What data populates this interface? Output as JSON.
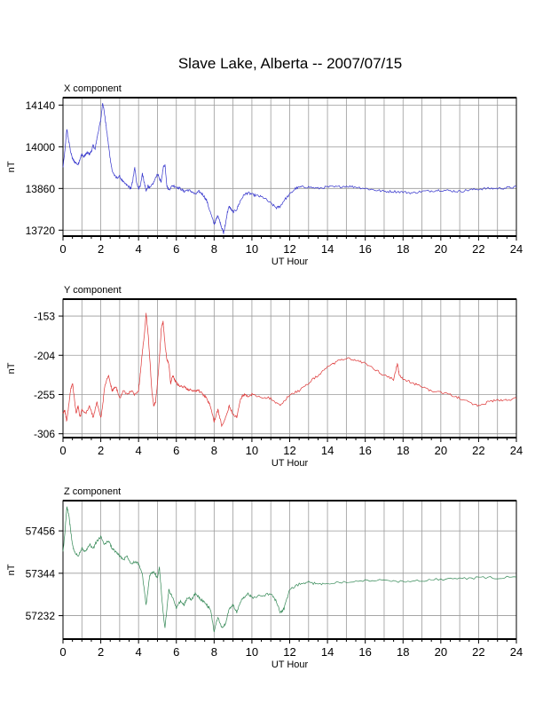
{
  "title": "Slave Lake, Alberta -- 2007/07/15",
  "chart_data": [
    {
      "type": "line",
      "title": "X component",
      "xlabel": "UT Hour",
      "ylabel": "nT",
      "xlim": [
        0,
        24
      ],
      "ylim": [
        13700,
        14165
      ],
      "xticks": [
        0,
        2,
        4,
        6,
        8,
        10,
        12,
        14,
        16,
        18,
        20,
        22,
        24
      ],
      "xtick_labels": [
        "0",
        "2",
        "4",
        "6",
        "8",
        "10",
        "12",
        "14",
        "16",
        "18",
        "20",
        "22",
        "24"
      ],
      "yticks": [
        13720,
        13860,
        14000,
        14140
      ],
      "ytick_labels": [
        "13720",
        "13860",
        "14000",
        "14140"
      ],
      "grid": true,
      "color": "#3333cc",
      "series": [
        {
          "x": [
            0.0,
            0.1,
            0.2,
            0.3,
            0.4,
            0.5,
            0.6,
            0.8,
            0.9,
            1.0,
            1.1,
            1.2,
            1.3,
            1.4,
            1.5,
            1.6,
            1.7,
            1.8,
            1.9,
            2.0,
            2.1,
            2.2,
            2.3,
            2.4,
            2.5,
            2.6,
            2.8,
            3.0,
            3.2,
            3.4,
            3.6,
            3.7,
            3.8,
            3.9,
            4.0,
            4.1,
            4.2,
            4.3,
            4.4,
            4.5,
            4.6,
            4.8,
            5.0,
            5.2,
            5.3,
            5.4,
            5.5,
            5.6,
            5.8,
            6.0,
            6.2,
            6.4,
            6.6,
            6.8,
            7.0,
            7.2,
            7.4,
            7.6,
            7.8,
            8.0,
            8.1,
            8.2,
            8.3,
            8.4,
            8.5,
            8.6,
            8.7,
            8.8,
            8.9,
            9.0,
            9.2,
            9.4,
            9.6,
            9.8,
            10.0,
            10.3,
            10.6,
            11.0,
            11.3,
            11.5,
            11.7,
            12.0,
            12.3,
            12.6,
            13.0,
            13.5,
            14.0,
            14.5,
            15.0,
            15.5,
            16.0,
            16.5,
            17.0,
            17.5,
            18.0,
            18.5,
            19.0,
            19.5,
            20.0,
            20.5,
            21.0,
            21.5,
            22.0,
            22.5,
            23.0,
            23.5,
            24.0
          ],
          "values": [
            13930,
            13985,
            14060,
            14020,
            13985,
            13960,
            13950,
            13940,
            13960,
            13975,
            13965,
            13975,
            13980,
            13975,
            13985,
            14005,
            13990,
            14030,
            14060,
            14090,
            14150,
            14110,
            14060,
            14010,
            13960,
            13920,
            13895,
            13900,
            13880,
            13870,
            13860,
            13890,
            13930,
            13880,
            13860,
            13870,
            13910,
            13880,
            13850,
            13870,
            13860,
            13880,
            13910,
            13880,
            13930,
            13940,
            13870,
            13855,
            13870,
            13865,
            13860,
            13850,
            13855,
            13850,
            13840,
            13850,
            13840,
            13820,
            13780,
            13740,
            13755,
            13770,
            13750,
            13730,
            13710,
            13740,
            13780,
            13800,
            13790,
            13780,
            13790,
            13820,
            13840,
            13845,
            13840,
            13835,
            13830,
            13810,
            13795,
            13800,
            13820,
            13840,
            13860,
            13865,
            13865,
            13860,
            13865,
            13865,
            13868,
            13865,
            13860,
            13855,
            13850,
            13850,
            13848,
            13845,
            13850,
            13852,
            13855,
            13852,
            13850,
            13855,
            13858,
            13860,
            13860,
            13862,
            13865
          ]
        }
      ]
    },
    {
      "type": "line",
      "title": "Y component",
      "xlabel": "UT Hour",
      "ylabel": "nT",
      "xlim": [
        0,
        24
      ],
      "ylim": [
        -311,
        -131
      ],
      "xticks": [
        0,
        2,
        4,
        6,
        8,
        10,
        12,
        14,
        16,
        18,
        20,
        22,
        24
      ],
      "xtick_labels": [
        "0",
        "2",
        "4",
        "6",
        "8",
        "10",
        "12",
        "14",
        "16",
        "18",
        "20",
        "22",
        "24"
      ],
      "yticks": [
        -306,
        -255,
        -204,
        -153
      ],
      "ytick_labels": [
        "-306",
        "-255",
        "-204",
        "-153"
      ],
      "grid": true,
      "color": "#dd3333",
      "series": [
        {
          "x": [
            0.0,
            0.1,
            0.2,
            0.3,
            0.4,
            0.5,
            0.6,
            0.7,
            0.8,
            0.9,
            1.0,
            1.2,
            1.4,
            1.6,
            1.8,
            2.0,
            2.1,
            2.2,
            2.4,
            2.5,
            2.6,
            2.8,
            3.0,
            3.2,
            3.4,
            3.6,
            3.8,
            4.0,
            4.1,
            4.2,
            4.3,
            4.4,
            4.5,
            4.6,
            4.7,
            4.8,
            4.9,
            5.0,
            5.1,
            5.2,
            5.3,
            5.4,
            5.5,
            5.6,
            5.7,
            5.8,
            5.9,
            6.0,
            6.2,
            6.4,
            6.6,
            6.8,
            7.0,
            7.2,
            7.4,
            7.6,
            7.8,
            8.0,
            8.2,
            8.4,
            8.6,
            8.8,
            9.0,
            9.2,
            9.4,
            9.6,
            9.8,
            10.0,
            10.5,
            11.0,
            11.5,
            12.0,
            12.5,
            13.0,
            13.5,
            14.0,
            14.5,
            15.0,
            15.5,
            16.0,
            16.5,
            17.0,
            17.5,
            17.7,
            17.8,
            18.0,
            18.5,
            19.0,
            19.5,
            20.0,
            20.5,
            21.0,
            21.5,
            22.0,
            22.5,
            23.0,
            23.5,
            24.0
          ],
          "values": [
            -280,
            -275,
            -290,
            -270,
            -250,
            -240,
            -260,
            -280,
            -270,
            -285,
            -275,
            -280,
            -270,
            -285,
            -265,
            -285,
            -270,
            -245,
            -230,
            -240,
            -250,
            -245,
            -260,
            -250,
            -255,
            -250,
            -255,
            -250,
            -225,
            -200,
            -180,
            -150,
            -175,
            -210,
            -250,
            -270,
            -265,
            -240,
            -210,
            -170,
            -160,
            -190,
            -210,
            -215,
            -240,
            -230,
            -235,
            -240,
            -245,
            -245,
            -248,
            -250,
            -250,
            -250,
            -255,
            -260,
            -270,
            -290,
            -275,
            -295,
            -285,
            -270,
            -280,
            -285,
            -260,
            -255,
            -258,
            -255,
            -258,
            -260,
            -270,
            -255,
            -250,
            -240,
            -230,
            -220,
            -212,
            -208,
            -210,
            -215,
            -222,
            -230,
            -235,
            -215,
            -230,
            -235,
            -240,
            -245,
            -250,
            -252,
            -255,
            -260,
            -265,
            -270,
            -265,
            -262,
            -262,
            -260
          ]
        }
      ]
    },
    {
      "type": "line",
      "title": "Z component",
      "xlabel": "UT Hour",
      "ylabel": "nT",
      "xlim": [
        0,
        24
      ],
      "ylim": [
        57170,
        57536
      ],
      "xticks": [
        0,
        2,
        4,
        6,
        8,
        10,
        12,
        14,
        16,
        18,
        20,
        22,
        24
      ],
      "xtick_labels": [
        "0",
        "2",
        "4",
        "6",
        "8",
        "10",
        "12",
        "14",
        "16",
        "18",
        "20",
        "22",
        "24"
      ],
      "yticks": [
        57232,
        57344,
        57456
      ],
      "ytick_labels": [
        "57232",
        "57344",
        "57456"
      ],
      "grid": true,
      "color": "#338855",
      "series": [
        {
          "x": [
            0.0,
            0.1,
            0.2,
            0.3,
            0.4,
            0.5,
            0.6,
            0.8,
            1.0,
            1.2,
            1.4,
            1.6,
            1.8,
            2.0,
            2.2,
            2.4,
            2.6,
            2.8,
            3.0,
            3.2,
            3.4,
            3.6,
            3.8,
            4.0,
            4.2,
            4.4,
            4.5,
            4.6,
            4.8,
            5.0,
            5.1,
            5.2,
            5.3,
            5.4,
            5.5,
            5.6,
            5.8,
            6.0,
            6.2,
            6.4,
            6.6,
            6.8,
            7.0,
            7.2,
            7.4,
            7.6,
            7.8,
            8.0,
            8.2,
            8.4,
            8.6,
            8.8,
            9.0,
            9.2,
            9.4,
            9.6,
            9.8,
            10.0,
            10.5,
            11.0,
            11.3,
            11.5,
            11.7,
            12.0,
            12.5,
            13.0,
            13.5,
            14.0,
            15.0,
            16.0,
            17.0,
            18.0,
            19.0,
            20.0,
            21.0,
            22.0,
            23.0,
            24.0
          ],
          "values": [
            57400,
            57450,
            57520,
            57500,
            57460,
            57420,
            57400,
            57390,
            57410,
            57400,
            57420,
            57410,
            57430,
            57440,
            57420,
            57430,
            57410,
            57400,
            57390,
            57380,
            57390,
            57370,
            57375,
            57370,
            57340,
            57260,
            57300,
            57340,
            57350,
            57330,
            57360,
            57300,
            57240,
            57200,
            57250,
            57300,
            57280,
            57250,
            57270,
            57260,
            57280,
            57275,
            57290,
            57280,
            57270,
            57260,
            57250,
            57190,
            57230,
            57200,
            57210,
            57250,
            57260,
            57240,
            57270,
            57280,
            57290,
            57280,
            57285,
            57290,
            57270,
            57240,
            57250,
            57300,
            57315,
            57320,
            57315,
            57318,
            57322,
            57325,
            57325,
            57322,
            57325,
            57328,
            57330,
            57332,
            57332,
            57334
          ]
        }
      ]
    }
  ]
}
